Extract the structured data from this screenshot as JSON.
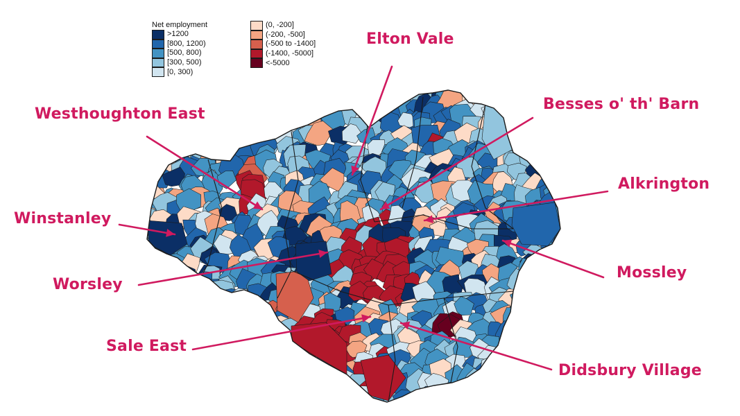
{
  "legend": {
    "title": "Net employment",
    "positive": [
      {
        "label": ">1200",
        "color": "#0b2f66"
      },
      {
        "label": "[800, 1200)",
        "color": "#2166ac"
      },
      {
        "label": "[500, 800)",
        "color": "#4393c3"
      },
      {
        "label": "[300, 500)",
        "color": "#92c5de"
      },
      {
        "label": "[0, 300)",
        "color": "#d1e5f0"
      }
    ],
    "negative": [
      {
        "label": "(0, -200]",
        "color": "#fddbc7"
      },
      {
        "label": "(-200, -500]",
        "color": "#f4a582"
      },
      {
        "label": "(-500 to -1400]",
        "color": "#d6604d"
      },
      {
        "label": "(-1400, -5000]",
        "color": "#b2182b"
      },
      {
        "label": "<-5000",
        "color": "#67001f"
      }
    ]
  },
  "annotations": [
    {
      "id": "elton-vale",
      "label": "Elton Vale"
    },
    {
      "id": "westhoughton-east",
      "label": "Westhoughton East"
    },
    {
      "id": "besses",
      "label": "Besses o' th' Barn"
    },
    {
      "id": "alkrington",
      "label": "Alkrington"
    },
    {
      "id": "winstanley",
      "label": "Winstanley"
    },
    {
      "id": "worsley",
      "label": "Worsley"
    },
    {
      "id": "mossley",
      "label": "Mossley"
    },
    {
      "id": "sale-east",
      "label": "Sale East"
    },
    {
      "id": "didsbury-village",
      "label": "Didsbury Village"
    }
  ],
  "colors": {
    "annotation": "#d01a5f",
    "boundary": "#1a1a1a"
  }
}
